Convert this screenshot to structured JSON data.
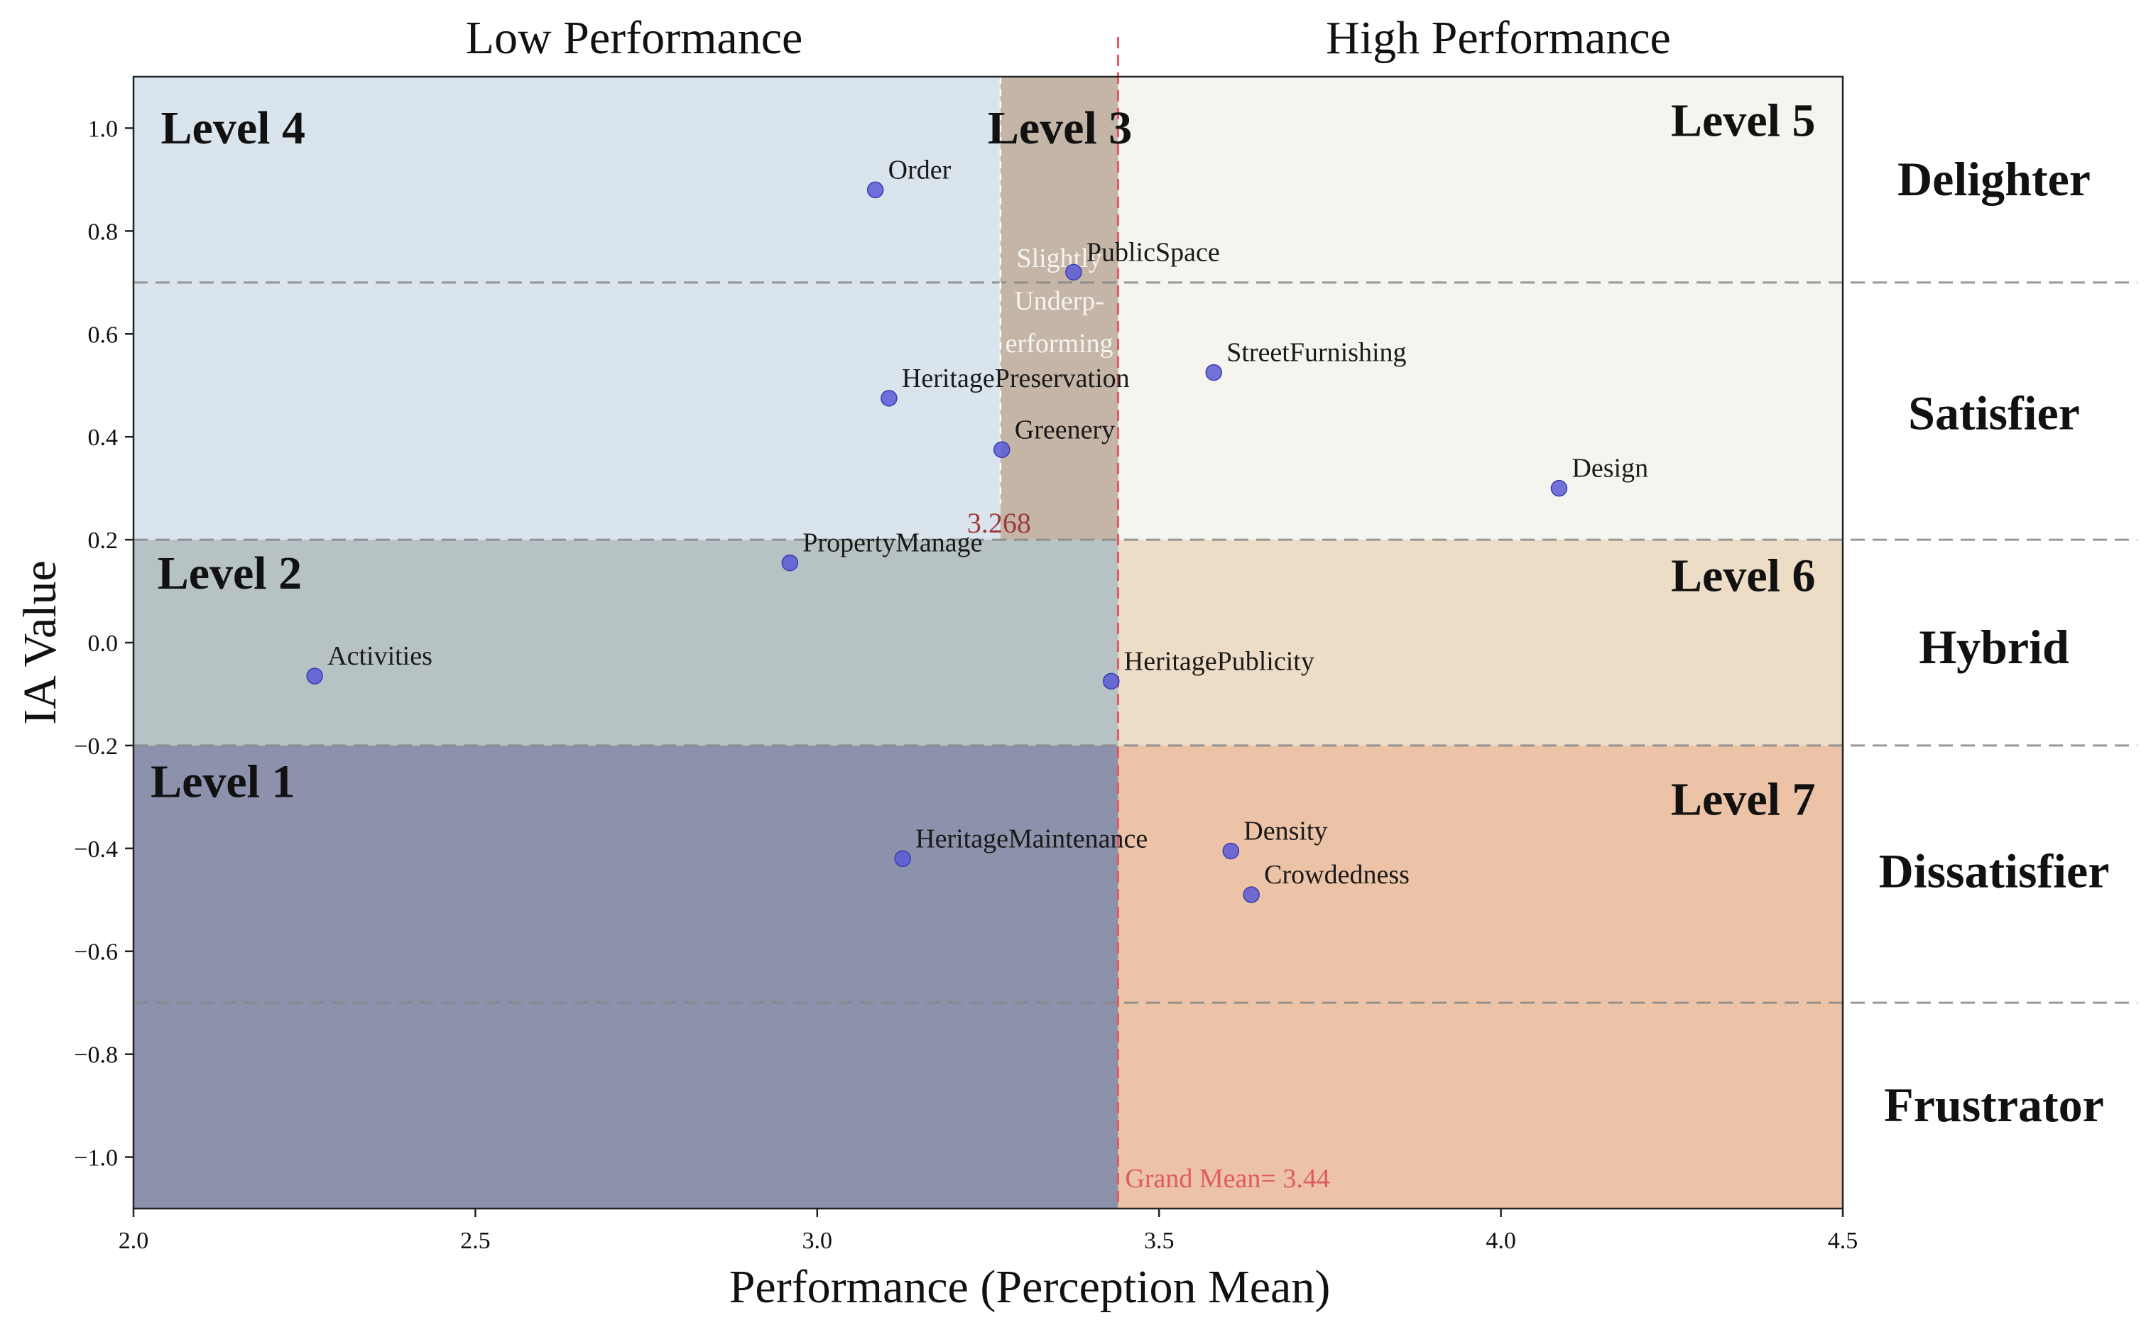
{
  "chart_data": {
    "type": "scatter",
    "xlabel": "Performance (Perception Mean)",
    "ylabel": "IA Value",
    "xlim": [
      2.0,
      4.5
    ],
    "ylim": [
      -1.1,
      1.1
    ],
    "xticks": [
      "2.0",
      "2.5",
      "3.0",
      "3.5",
      "4.0",
      "4.5"
    ],
    "yticks": [
      "1.0",
      "0.8",
      "0.6",
      "0.4",
      "0.2",
      "0.0",
      "−0.2",
      "−0.4",
      "−0.6",
      "−0.8",
      "−1.0"
    ],
    "grid": false,
    "point_color": "#5b5bd6",
    "points": [
      {
        "label": "Order",
        "x": 3.085,
        "y": 0.88
      },
      {
        "label": "PublicSpace",
        "x": 3.375,
        "y": 0.72
      },
      {
        "label": "StreetFurnishing",
        "x": 3.58,
        "y": 0.525
      },
      {
        "label": "HeritagePreservation",
        "x": 3.105,
        "y": 0.475
      },
      {
        "label": "Greenery",
        "x": 3.27,
        "y": 0.375
      },
      {
        "label": "Design",
        "x": 4.085,
        "y": 0.3
      },
      {
        "label": "PropertyManage",
        "x": 2.96,
        "y": 0.155
      },
      {
        "label": "Activities",
        "x": 2.265,
        "y": -0.065
      },
      {
        "label": "HeritagePublicity",
        "x": 3.43,
        "y": -0.075
      },
      {
        "label": "HeritageMaintenance",
        "x": 3.125,
        "y": -0.42
      },
      {
        "label": "Density",
        "x": 3.605,
        "y": -0.405
      },
      {
        "label": "Crowdedness",
        "x": 3.635,
        "y": -0.49
      }
    ],
    "regions": [
      {
        "name": "level4",
        "label": "Level 4",
        "x": [
          2.0,
          3.268
        ],
        "y": [
          0.2,
          1.1
        ],
        "color": "#d9e4ed"
      },
      {
        "name": "level3",
        "label": "Level 3",
        "x": [
          3.268,
          3.44
        ],
        "y": [
          0.2,
          1.1
        ],
        "color": "#c4b5a7"
      },
      {
        "name": "level5",
        "label": "Level 5",
        "x": [
          3.44,
          4.5
        ],
        "y": [
          0.2,
          1.1
        ],
        "color": "#f6f4ef"
      },
      {
        "name": "level2",
        "label": "Level 2",
        "x": [
          2.0,
          3.44
        ],
        "y": [
          -0.2,
          0.2
        ],
        "color": "#b6c2c4"
      },
      {
        "name": "level6",
        "label": "Level 6",
        "x": [
          3.44,
          4.5
        ],
        "y": [
          -0.2,
          0.2
        ],
        "color": "#eddcc6"
      },
      {
        "name": "level1",
        "label": "Level 1",
        "x": [
          2.0,
          3.44
        ],
        "y": [
          -1.1,
          -0.2
        ],
        "color": "#8c92ab"
      },
      {
        "name": "level7",
        "label": "Level 7",
        "x": [
          3.44,
          4.5
        ],
        "y": [
          -1.1,
          -0.2
        ],
        "color": "#ecc3a6"
      }
    ],
    "hlines": [
      0.7,
      0.2,
      -0.2,
      -0.7
    ],
    "grand_mean": {
      "value": 3.44,
      "label": "Grand Mean= 3.44",
      "color": "#e05a64"
    },
    "threshold": {
      "value": 3.268,
      "label": "3.268",
      "color": "#9c3b3b"
    },
    "underperforming_note": [
      "Slightly",
      "Underp-",
      "erforming"
    ],
    "header_low": "Low Performance",
    "header_high": "High Performance",
    "category_labels": [
      {
        "label": "Delighter",
        "y": 0.9
      },
      {
        "label": "Satisfier",
        "y": 0.445
      },
      {
        "label": "Hybrid",
        "y": -0.01
      },
      {
        "label": "Dissatisfier",
        "y": -0.445
      },
      {
        "label": "Frustrator",
        "y": -0.9
      }
    ]
  }
}
